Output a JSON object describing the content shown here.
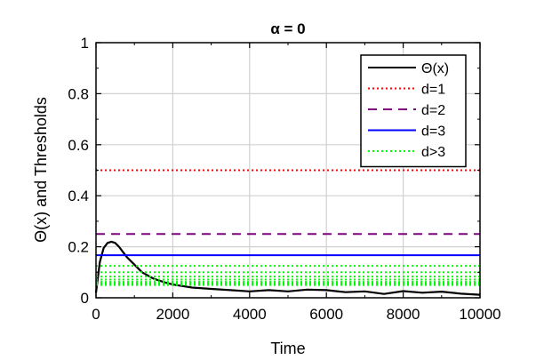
{
  "chart_data": {
    "type": "line",
    "title": "α = 0",
    "xlabel": "Time",
    "ylabel": "Θ(x) and Thresholds",
    "xlim": [
      0,
      10000
    ],
    "ylim": [
      0,
      1
    ],
    "xticks": [
      "0",
      "2000",
      "4000",
      "6000",
      "8000",
      "10000"
    ],
    "yticks": [
      "0",
      "0.2",
      "0.4",
      "0.6",
      "0.8",
      "1"
    ],
    "grid": true,
    "legend_position": "top-right",
    "series": [
      {
        "name": "Θ(x)",
        "style": "solid",
        "color": "#000000",
        "x": [
          0,
          50,
          100,
          200,
          300,
          400,
          500,
          600,
          700,
          800,
          1000,
          1200,
          1500,
          1800,
          2000,
          2500,
          3000,
          3500,
          4000,
          4500,
          5000,
          5500,
          6000,
          6500,
          7000,
          7500,
          8000,
          8500,
          9000,
          9500,
          10000
        ],
        "y": [
          0.02,
          0.08,
          0.14,
          0.195,
          0.215,
          0.22,
          0.215,
          0.2,
          0.18,
          0.16,
          0.13,
          0.1,
          0.075,
          0.06,
          0.052,
          0.04,
          0.035,
          0.03,
          0.025,
          0.03,
          0.025,
          0.032,
          0.03,
          0.022,
          0.025,
          0.015,
          0.026,
          0.02,
          0.024,
          0.016,
          0.012
        ]
      },
      {
        "name": "d=1",
        "style": "dotted",
        "color": "#ff0000",
        "value": 0.5
      },
      {
        "name": "d=2",
        "style": "dashed",
        "color": "#800080",
        "value": 0.25
      },
      {
        "name": "d=3",
        "style": "solid",
        "color": "#0000ff",
        "value": 0.167
      },
      {
        "name": "d>3",
        "style": "dotted",
        "color": "#00ff00",
        "values": [
          0.125,
          0.1,
          0.0833,
          0.0714,
          0.0625,
          0.0556,
          0.05
        ]
      }
    ]
  }
}
